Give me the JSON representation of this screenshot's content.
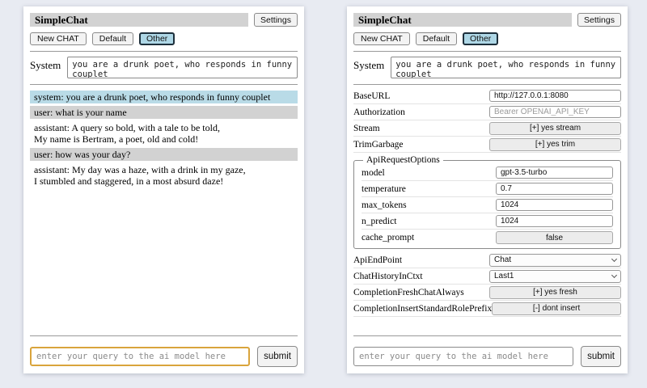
{
  "app": {
    "title": "SimpleChat",
    "settings_label": "Settings",
    "sessions": [
      "New CHAT",
      "Default",
      "Other"
    ],
    "active_session": "Other"
  },
  "system_prompt": {
    "label": "System",
    "value": "you are a drunk poet, who responds in funny couplet"
  },
  "chat": {
    "messages": [
      {
        "role": "system",
        "text": "system: you are a drunk poet, who responds in funny couplet"
      },
      {
        "role": "user",
        "text": "user: what is your name"
      },
      {
        "role": "assistant",
        "text": "assistant: A query so bold, with a tale to be told,\nMy name is Bertram, a poet, old and cold!"
      },
      {
        "role": "user",
        "text": "user: how was your day?"
      },
      {
        "role": "assistant",
        "text": "assistant: My day was a haze, with a drink in my gaze,\nI stumbled and staggered, in a most absurd daze!"
      }
    ]
  },
  "query": {
    "placeholder": "enter your query to the ai model here",
    "submit_label": "submit"
  },
  "settings": {
    "base_url": {
      "label": "BaseURL",
      "value": "http://127.0.0.1:8080"
    },
    "authorization": {
      "label": "Authorization",
      "placeholder": "Bearer OPENAI_API_KEY"
    },
    "stream": {
      "label": "Stream",
      "value": "[+] yes stream"
    },
    "trim_garbage": {
      "label": "TrimGarbage",
      "value": "[+] yes trim"
    },
    "api_request_options": {
      "legend": "ApiRequestOptions",
      "model": {
        "label": "model",
        "value": "gpt-3.5-turbo"
      },
      "temperature": {
        "label": "temperature",
        "value": "0.7"
      },
      "max_tokens": {
        "label": "max_tokens",
        "value": "1024"
      },
      "n_predict": {
        "label": "n_predict",
        "value": "1024"
      },
      "cache_prompt": {
        "label": "cache_prompt",
        "value": "false"
      }
    },
    "api_endpoint": {
      "label": "ApiEndPoint",
      "value": "Chat"
    },
    "chat_history_in_ctxt": {
      "label": "ChatHistoryInCtxt",
      "value": "Last1"
    },
    "completion_fresh_chat_always": {
      "label": "CompletionFreshChatAlways",
      "value": "[+] yes fresh"
    },
    "completion_insert_standard_role_prefix": {
      "label": "CompletionInsertStandardRolePrefix",
      "value": "[-] dont insert"
    }
  },
  "colors": {
    "page_bg": "#e8ebf2",
    "panel_bg": "#ffffff",
    "titlebar_bg": "#d2d2d2",
    "active_session_bg": "#aed7e6",
    "system_msg_bg": "#b9dbe7",
    "user_msg_bg": "#d2d2d2",
    "query_focus_border": "#d9a43c"
  }
}
